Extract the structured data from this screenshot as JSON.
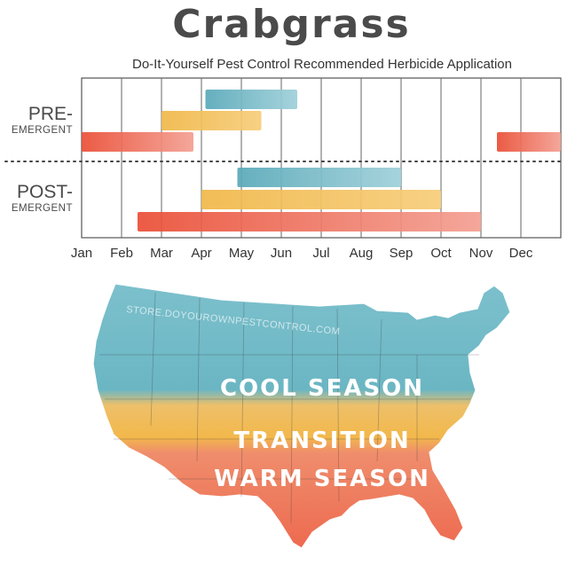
{
  "header": {
    "title": "Crabgrass",
    "subtitle": "Do-It-Yourself Pest Control Recommended Herbicide Application"
  },
  "rows": {
    "pre": {
      "line1": "PRE-",
      "line2": "EMERGENT"
    },
    "post": {
      "line1": "POST-",
      "line2": "EMERGENT"
    }
  },
  "chart_data": {
    "type": "gantt",
    "title": "Crabgrass",
    "subtitle": "Do-It-Yourself Pest Control Recommended Herbicide Application",
    "months": [
      "Jan",
      "Feb",
      "Mar",
      "Apr",
      "May",
      "Jun",
      "Jul",
      "Aug",
      "Sep",
      "Oct",
      "Nov",
      "Dec"
    ],
    "grid": true,
    "colors": {
      "cool": "#6bb6c4",
      "transition": "#f2b84b",
      "warm": "#ee6a50"
    },
    "bars": [
      {
        "row": "pre",
        "region": "cool",
        "start": 3.1,
        "end": 5.4
      },
      {
        "row": "pre",
        "region": "transition",
        "start": 2.0,
        "end": 4.5
      },
      {
        "row": "pre",
        "region": "warm",
        "start": 0.0,
        "end": 2.8
      },
      {
        "row": "pre",
        "region": "warm",
        "start": 10.4,
        "end": 12.0
      },
      {
        "row": "post",
        "region": "cool",
        "start": 3.9,
        "end": 8.0
      },
      {
        "row": "post",
        "region": "transition",
        "start": 3.0,
        "end": 9.0
      },
      {
        "row": "post",
        "region": "warm",
        "start": 1.4,
        "end": 10.0
      }
    ]
  },
  "map": {
    "watermark": "STORE.DOYOUROWNPESTCONTROL.COM",
    "regions": [
      {
        "label": "COOL SEASON",
        "color": "#6bb6c4"
      },
      {
        "label": "TRANSITION",
        "color": "#f2b84b"
      },
      {
        "label": "WARM SEASON",
        "color": "#ee6a50"
      }
    ]
  }
}
